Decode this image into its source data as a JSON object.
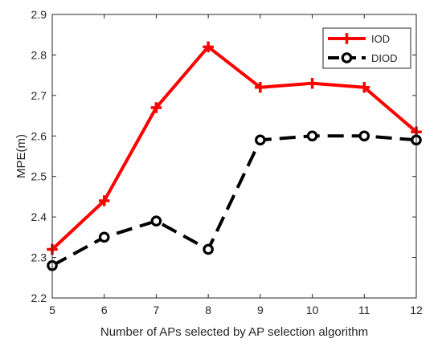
{
  "chart_data": {
    "type": "line",
    "title": "",
    "xlabel": "Number of APs selected by AP selection algorithm",
    "ylabel": "MPE(m)",
    "x": [
      5,
      6,
      7,
      8,
      9,
      10,
      11,
      12
    ],
    "xlim": [
      5,
      12
    ],
    "ylim": [
      2.2,
      2.9
    ],
    "xticks": [
      "5",
      "6",
      "7",
      "8",
      "9",
      "10",
      "11",
      "12"
    ],
    "yticks": [
      "2.2",
      "2.3",
      "2.4",
      "2.5",
      "2.6",
      "2.7",
      "2.8",
      "2.9"
    ],
    "grid": false,
    "legend_position": "top-right",
    "series": [
      {
        "name": "IOD",
        "values": [
          2.32,
          2.44,
          2.67,
          2.82,
          2.72,
          2.73,
          2.72,
          2.61
        ],
        "color": "#ff0000",
        "line_style": "solid",
        "marker": "plus"
      },
      {
        "name": "DIOD",
        "values": [
          2.28,
          2.35,
          2.39,
          2.32,
          2.59,
          2.6,
          2.6,
          2.59
        ],
        "color": "#000000",
        "line_style": "dashed",
        "marker": "circle"
      }
    ]
  }
}
